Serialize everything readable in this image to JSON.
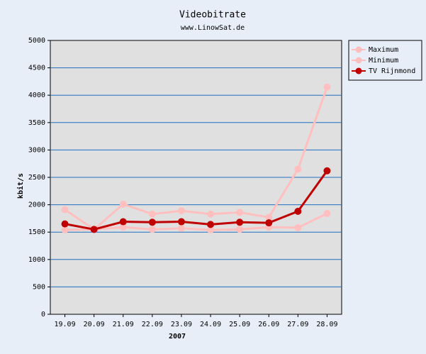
{
  "chart_data": {
    "type": "line",
    "title": "Videobitrate",
    "subtitle": "www.LinowSat.de",
    "x_label": "2007",
    "y_label": "kbit/s",
    "categories": [
      "19.09",
      "20.09",
      "21.09",
      "22.09",
      "23.09",
      "24.09",
      "25.09",
      "26.09",
      "27.09",
      "28.09"
    ],
    "series": [
      {
        "name": "Maximum",
        "color": "#ffbfbf",
        "values": [
          1910,
          1550,
          2010,
          1830,
          1890,
          1830,
          1860,
          1770,
          2650,
          4150
        ]
      },
      {
        "name": "Minimum",
        "color": "#ffbfbf",
        "values": [
          1540,
          1550,
          1590,
          1550,
          1570,
          1540,
          1550,
          1590,
          1580,
          1840
        ]
      },
      {
        "name": "TV Rijnmond",
        "color": "#c00000",
        "values": [
          1650,
          1550,
          1690,
          1680,
          1690,
          1640,
          1680,
          1670,
          1880,
          2620
        ]
      }
    ],
    "ylim": [
      0,
      5000
    ],
    "yticks": [
      0,
      500,
      1000,
      1500,
      2000,
      2500,
      3000,
      3500,
      4000,
      4500,
      5000
    ],
    "grid": true,
    "legend": "right"
  }
}
